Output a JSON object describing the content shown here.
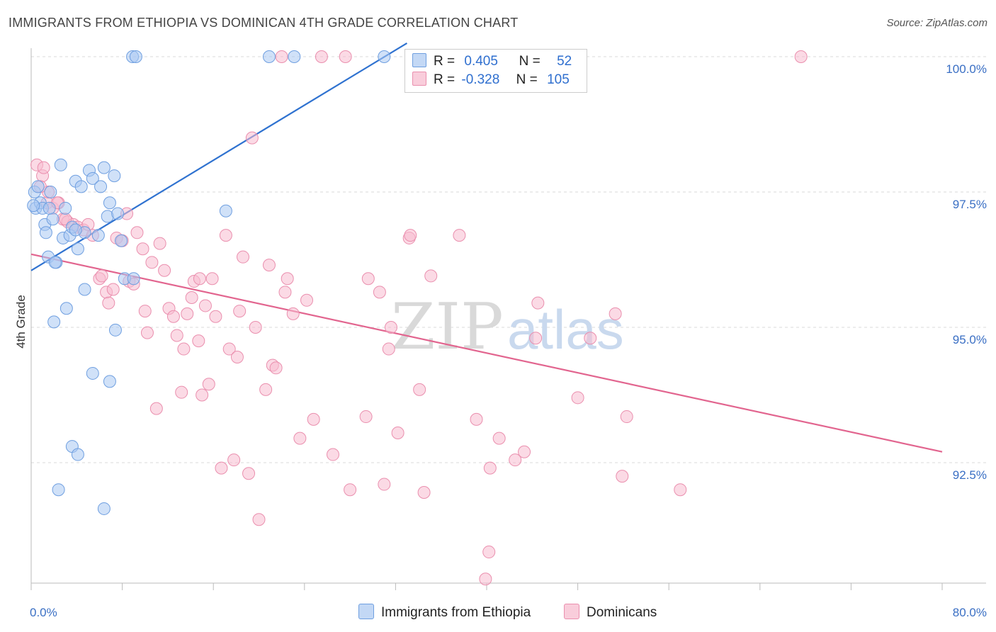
{
  "title": "IMMIGRANTS FROM ETHIOPIA VS DOMINICAN 4TH GRADE CORRELATION CHART",
  "source": "Source: ZipAtlas.com",
  "watermark": {
    "zip": "ZIP",
    "atlas": "atlas"
  },
  "colors": {
    "blue_fill": "#a9c8f2",
    "blue_stroke": "#6f9fe0",
    "blue_line": "#2f72d0",
    "pink_fill": "#f7bccf",
    "pink_stroke": "#ea8fae",
    "pink_line": "#e2658f",
    "grid": "#d8d8d8",
    "axis_text": "#3a6fc4"
  },
  "legend": {
    "rows": [
      {
        "r_label": "R =",
        "r_value": "0.405",
        "n_label": "N =",
        "n_value": "52"
      },
      {
        "r_label": "R =",
        "r_value": "-0.328",
        "n_label": "N =",
        "n_value": "105"
      }
    ]
  },
  "bottom_legend": [
    "Immigrants from Ethiopia",
    "Dominicans"
  ],
  "chart_data": {
    "type": "scatter",
    "title": "IMMIGRANTS FROM ETHIOPIA VS DOMINICAN 4TH GRADE CORRELATION CHART",
    "xlabel": "",
    "ylabel": "4th Grade",
    "xlim": [
      0,
      80
    ],
    "ylim": [
      90.0,
      100.25
    ],
    "x_tick_labels": [
      "0.0%",
      "80.0%"
    ],
    "y_ticks": [
      100.0,
      97.5,
      95.0,
      92.5
    ],
    "y_tick_labels": [
      "100.0%",
      "97.5%",
      "95.0%",
      "92.5%"
    ],
    "series": [
      {
        "name": "Immigrants from Ethiopia",
        "R": 0.405,
        "N": 52,
        "trend": {
          "x": [
            0.0,
            33.0
          ],
          "y": [
            96.05,
            100.25
          ]
        },
        "points": [
          [
            0.3,
            97.5
          ],
          [
            0.4,
            97.2
          ],
          [
            0.6,
            97.6
          ],
          [
            0.8,
            97.3
          ],
          [
            1.0,
            97.2
          ],
          [
            1.2,
            96.9
          ],
          [
            1.3,
            96.75
          ],
          [
            1.5,
            96.3
          ],
          [
            1.7,
            97.5
          ],
          [
            1.9,
            97.0
          ],
          [
            2.2,
            96.2
          ],
          [
            2.6,
            98.0
          ],
          [
            2.8,
            96.65
          ],
          [
            3.0,
            97.2
          ],
          [
            3.1,
            95.35
          ],
          [
            3.4,
            96.7
          ],
          [
            3.6,
            96.85
          ],
          [
            3.9,
            97.7
          ],
          [
            4.1,
            96.45
          ],
          [
            4.4,
            97.6
          ],
          [
            4.7,
            96.75
          ],
          [
            5.1,
            97.9
          ],
          [
            5.4,
            97.75
          ],
          [
            5.9,
            96.7
          ],
          [
            6.1,
            97.6
          ],
          [
            6.4,
            97.95
          ],
          [
            6.7,
            97.05
          ],
          [
            6.9,
            97.3
          ],
          [
            7.3,
            97.8
          ],
          [
            7.6,
            97.1
          ],
          [
            7.9,
            96.6
          ],
          [
            8.2,
            95.9
          ],
          [
            9.0,
            95.9
          ],
          [
            8.9,
            100.0
          ],
          [
            9.2,
            100.0
          ],
          [
            2.1,
            96.2
          ],
          [
            4.7,
            95.7
          ],
          [
            6.9,
            94.0
          ],
          [
            7.4,
            94.95
          ],
          [
            5.4,
            94.15
          ],
          [
            3.6,
            92.8
          ],
          [
            4.1,
            92.65
          ],
          [
            6.4,
            91.65
          ],
          [
            2.4,
            92.0
          ],
          [
            2.0,
            95.1
          ],
          [
            17.1,
            97.15
          ],
          [
            20.9,
            100.0
          ],
          [
            23.1,
            100.0
          ],
          [
            31.0,
            100.0
          ],
          [
            0.2,
            97.25
          ],
          [
            1.6,
            97.2
          ],
          [
            3.9,
            96.8
          ]
        ]
      },
      {
        "name": "Dominicans",
        "R": -0.328,
        "N": 105,
        "trend": {
          "x": [
            0.0,
            80.0
          ],
          "y": [
            96.35,
            92.7
          ]
        },
        "points": [
          [
            0.5,
            98.0
          ],
          [
            1.0,
            97.8
          ],
          [
            1.1,
            97.95
          ],
          [
            1.4,
            97.3
          ],
          [
            1.5,
            97.5
          ],
          [
            1.9,
            97.2
          ],
          [
            2.4,
            97.3
          ],
          [
            2.8,
            97.0
          ],
          [
            3.2,
            96.95
          ],
          [
            3.7,
            96.9
          ],
          [
            4.1,
            96.85
          ],
          [
            4.6,
            96.8
          ],
          [
            5.0,
            96.9
          ],
          [
            5.4,
            96.7
          ],
          [
            6.0,
            95.9
          ],
          [
            6.2,
            95.95
          ],
          [
            6.6,
            95.65
          ],
          [
            6.8,
            95.45
          ],
          [
            7.2,
            95.7
          ],
          [
            7.5,
            96.65
          ],
          [
            8.0,
            96.6
          ],
          [
            8.4,
            97.1
          ],
          [
            8.6,
            95.85
          ],
          [
            9.0,
            95.8
          ],
          [
            9.3,
            96.75
          ],
          [
            9.8,
            96.45
          ],
          [
            10.2,
            94.9
          ],
          [
            10.6,
            96.2
          ],
          [
            11.0,
            93.5
          ],
          [
            11.3,
            96.55
          ],
          [
            11.7,
            96.05
          ],
          [
            12.1,
            95.35
          ],
          [
            12.5,
            95.2
          ],
          [
            12.8,
            94.85
          ],
          [
            13.2,
            93.8
          ],
          [
            13.4,
            94.6
          ],
          [
            13.7,
            95.25
          ],
          [
            14.1,
            95.55
          ],
          [
            14.3,
            95.85
          ],
          [
            14.7,
            94.75
          ],
          [
            15.0,
            93.75
          ],
          [
            15.3,
            95.4
          ],
          [
            15.6,
            93.95
          ],
          [
            15.9,
            95.9
          ],
          [
            16.2,
            95.2
          ],
          [
            16.7,
            92.4
          ],
          [
            17.1,
            96.7
          ],
          [
            17.4,
            94.6
          ],
          [
            17.8,
            92.55
          ],
          [
            18.1,
            94.45
          ],
          [
            18.3,
            95.3
          ],
          [
            18.6,
            96.3
          ],
          [
            19.1,
            92.3
          ],
          [
            19.4,
            98.5
          ],
          [
            19.7,
            95.0
          ],
          [
            20.0,
            91.45
          ],
          [
            20.6,
            93.85
          ],
          [
            20.9,
            96.15
          ],
          [
            21.2,
            94.3
          ],
          [
            21.5,
            94.25
          ],
          [
            22.0,
            100.0
          ],
          [
            22.3,
            95.65
          ],
          [
            22.5,
            95.9
          ],
          [
            23.0,
            95.25
          ],
          [
            23.6,
            92.95
          ],
          [
            24.2,
            95.5
          ],
          [
            24.8,
            93.3
          ],
          [
            25.5,
            100.0
          ],
          [
            26.5,
            92.65
          ],
          [
            27.6,
            100.0
          ],
          [
            28.0,
            92.0
          ],
          [
            29.4,
            93.35
          ],
          [
            29.6,
            95.9
          ],
          [
            30.6,
            95.65
          ],
          [
            31.0,
            92.1
          ],
          [
            31.4,
            94.6
          ],
          [
            31.6,
            95.0
          ],
          [
            32.2,
            93.05
          ],
          [
            33.2,
            96.65
          ],
          [
            33.3,
            96.7
          ],
          [
            34.1,
            93.85
          ],
          [
            34.5,
            91.95
          ],
          [
            35.1,
            95.95
          ],
          [
            37.6,
            96.7
          ],
          [
            39.1,
            93.3
          ],
          [
            39.9,
            90.35
          ],
          [
            40.2,
            90.85
          ],
          [
            40.3,
            92.4
          ],
          [
            41.1,
            92.95
          ],
          [
            42.5,
            92.55
          ],
          [
            43.3,
            92.7
          ],
          [
            44.3,
            94.8
          ],
          [
            44.5,
            95.45
          ],
          [
            48.0,
            93.7
          ],
          [
            49.1,
            94.8
          ],
          [
            51.3,
            95.25
          ],
          [
            51.9,
            92.25
          ],
          [
            52.3,
            93.35
          ],
          [
            57.0,
            92.0
          ],
          [
            67.6,
            100.0
          ],
          [
            0.8,
            97.6
          ],
          [
            2.3,
            97.3
          ],
          [
            3.0,
            97.0
          ],
          [
            10.0,
            95.3
          ],
          [
            14.8,
            95.9
          ]
        ]
      }
    ]
  }
}
